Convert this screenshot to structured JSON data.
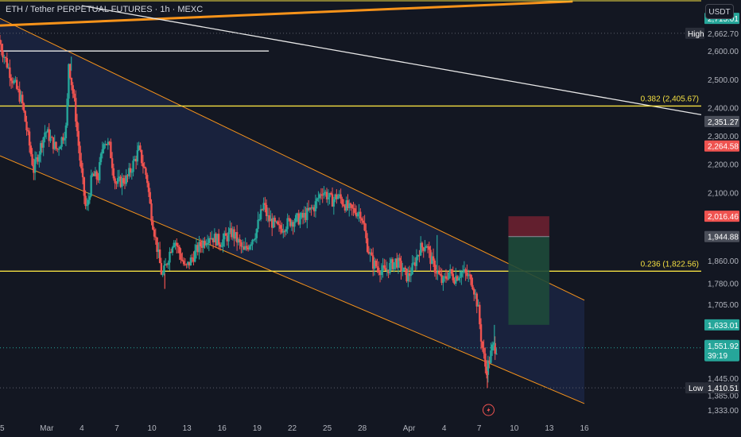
{
  "header": {
    "title": "ETH / Tether PERPETUAL FUTURES · 1h · MEXC",
    "currency_button": "USDT"
  },
  "chart_data": {
    "type": "candlestick",
    "symbol": "ETH / Tether PERPETUAL FUTURES",
    "interval": "1h",
    "exchange": "MEXC",
    "y_range": [
      1310,
      2780
    ],
    "x_range": [
      0,
      60
    ],
    "y_ticks": [
      2600,
      2500,
      2400,
      2300,
      2200,
      2100,
      1860,
      1780,
      1705,
      1445,
      1385,
      1333
    ],
    "x_ticks": [
      {
        "label": "25",
        "t": 0
      },
      {
        "label": "Mar",
        "t": 4
      },
      {
        "label": "4",
        "t": 7
      },
      {
        "label": "7",
        "t": 10
      },
      {
        "label": "10",
        "t": 13
      },
      {
        "label": "13",
        "t": 16
      },
      {
        "label": "16",
        "t": 19
      },
      {
        "label": "19",
        "t": 22
      },
      {
        "label": "22",
        "t": 25
      },
      {
        "label": "25",
        "t": 28
      },
      {
        "label": "28",
        "t": 31
      },
      {
        "label": "Apr",
        "t": 35
      },
      {
        "label": "4",
        "t": 38
      },
      {
        "label": "7",
        "t": 41
      },
      {
        "label": "10",
        "t": 44
      },
      {
        "label": "13",
        "t": 47
      },
      {
        "label": "16",
        "t": 50
      }
    ],
    "price_path": [
      [
        0,
        2640
      ],
      [
        1,
        2520
      ],
      [
        2,
        2420
      ],
      [
        3,
        2180
      ],
      [
        4,
        2320
      ],
      [
        5,
        2250
      ],
      [
        5.8,
        2330
      ],
      [
        6,
        2560
      ],
      [
        6.5,
        2410
      ],
      [
        7,
        2200
      ],
      [
        7.5,
        2030
      ],
      [
        8,
        2160
      ],
      [
        8.5,
        2150
      ],
      [
        9,
        2290
      ],
      [
        9.5,
        2260
      ],
      [
        10,
        2130
      ],
      [
        11,
        2150
      ],
      [
        12,
        2250
      ],
      [
        12.7,
        2150
      ],
      [
        13,
        2040
      ],
      [
        13.5,
        1920
      ],
      [
        14,
        1800
      ],
      [
        14.5,
        1870
      ],
      [
        15,
        1940
      ],
      [
        16,
        1830
      ],
      [
        17,
        1900
      ],
      [
        18,
        1950
      ],
      [
        19,
        1925
      ],
      [
        20,
        1960
      ],
      [
        21,
        1890
      ],
      [
        22,
        1960
      ],
      [
        22.7,
        2060
      ],
      [
        23,
        2010
      ],
      [
        24,
        1970
      ],
      [
        25,
        2000
      ],
      [
        26,
        2010
      ],
      [
        27,
        2050
      ],
      [
        27.7,
        2110
      ],
      [
        28.5,
        2070
      ],
      [
        29,
        2090
      ],
      [
        30,
        2040
      ],
      [
        31,
        2030
      ],
      [
        31.5,
        1920
      ],
      [
        32,
        1850
      ],
      [
        33,
        1820
      ],
      [
        34,
        1860
      ],
      [
        35,
        1800
      ],
      [
        35.5,
        1840
      ],
      [
        36,
        1900
      ],
      [
        36.6,
        1920
      ],
      [
        37,
        1860
      ],
      [
        37.5,
        1820
      ],
      [
        38,
        1780
      ],
      [
        38.5,
        1820
      ],
      [
        39,
        1800
      ],
      [
        39.6,
        1820
      ],
      [
        40,
        1810
      ],
      [
        40.5,
        1790
      ],
      [
        41,
        1700
      ],
      [
        41.3,
        1580
      ],
      [
        41.7,
        1470
      ],
      [
        42,
        1510
      ],
      [
        42.3,
        1560
      ],
      [
        42.5,
        1552
      ]
    ],
    "spikes": [
      {
        "t": 14.1,
        "low": 1760
      },
      {
        "t": 6.1,
        "high": 2580
      },
      {
        "t": 37.4,
        "high": 1950
      },
      {
        "t": 41.7,
        "low": 1410
      },
      {
        "t": 42.3,
        "high": 1633
      }
    ],
    "fib_levels": [
      {
        "label": "0.382 (2,405.67)",
        "value": 2405.67
      },
      {
        "label": "0.236 (1,822.56)",
        "value": 1822.56
      }
    ],
    "channel": {
      "upper": [
        [
          0,
          2715
        ],
        [
          50,
          1720
        ]
      ],
      "lower": [
        [
          0,
          2230
        ],
        [
          50,
          1355
        ]
      ]
    },
    "white_hline": {
      "value": 2600,
      "t_start": 0,
      "t_end": 23
    },
    "white_trend": [
      [
        7,
        2760
      ],
      [
        60,
        2375
      ]
    ],
    "orange_trend": [
      [
        0,
        2690
      ],
      [
        49,
        2775
      ]
    ],
    "position": {
      "t_start": 43.5,
      "t_end": 47,
      "stop": 2016.46,
      "entry": 1944.88,
      "target": 1633.01
    },
    "price_tags": [
      {
        "label": "2,715.01",
        "value": 2715.01,
        "bg": "#26a69a"
      },
      {
        "label": "2,351.27",
        "value": 2351.27,
        "bg": "#4a4e59"
      },
      {
        "label": "2,264.58",
        "value": 2264.58,
        "bg": "#ef5350"
      },
      {
        "label": "2,016.46",
        "value": 2016.46,
        "bg": "#ef5350"
      },
      {
        "label": "1,944.88",
        "value": 1944.88,
        "bg": "#4a4e59"
      },
      {
        "label": "1,633.01",
        "value": 1633.01,
        "bg": "#26a69a"
      }
    ],
    "high_marker": {
      "label": "High",
      "value_label": "2,662.70",
      "value": 2662.7
    },
    "low_marker": {
      "label": "Low",
      "value_label": "1,410.51",
      "value": 1410.51
    },
    "current": {
      "price_label": "1,551.92",
      "countdown": "39:19",
      "value": 1551.92,
      "bg": "#26a69a"
    },
    "colors": {
      "background": "#131722",
      "channel_fill": "#1b2442",
      "orange": "#f7931a",
      "fib": "#f5e042",
      "up": "#26a69a",
      "down": "#ef5350",
      "profit_zone": "#1e4a3a",
      "loss_zone": "#6b2030"
    }
  },
  "icons": {
    "lightning": "lightning-icon"
  }
}
